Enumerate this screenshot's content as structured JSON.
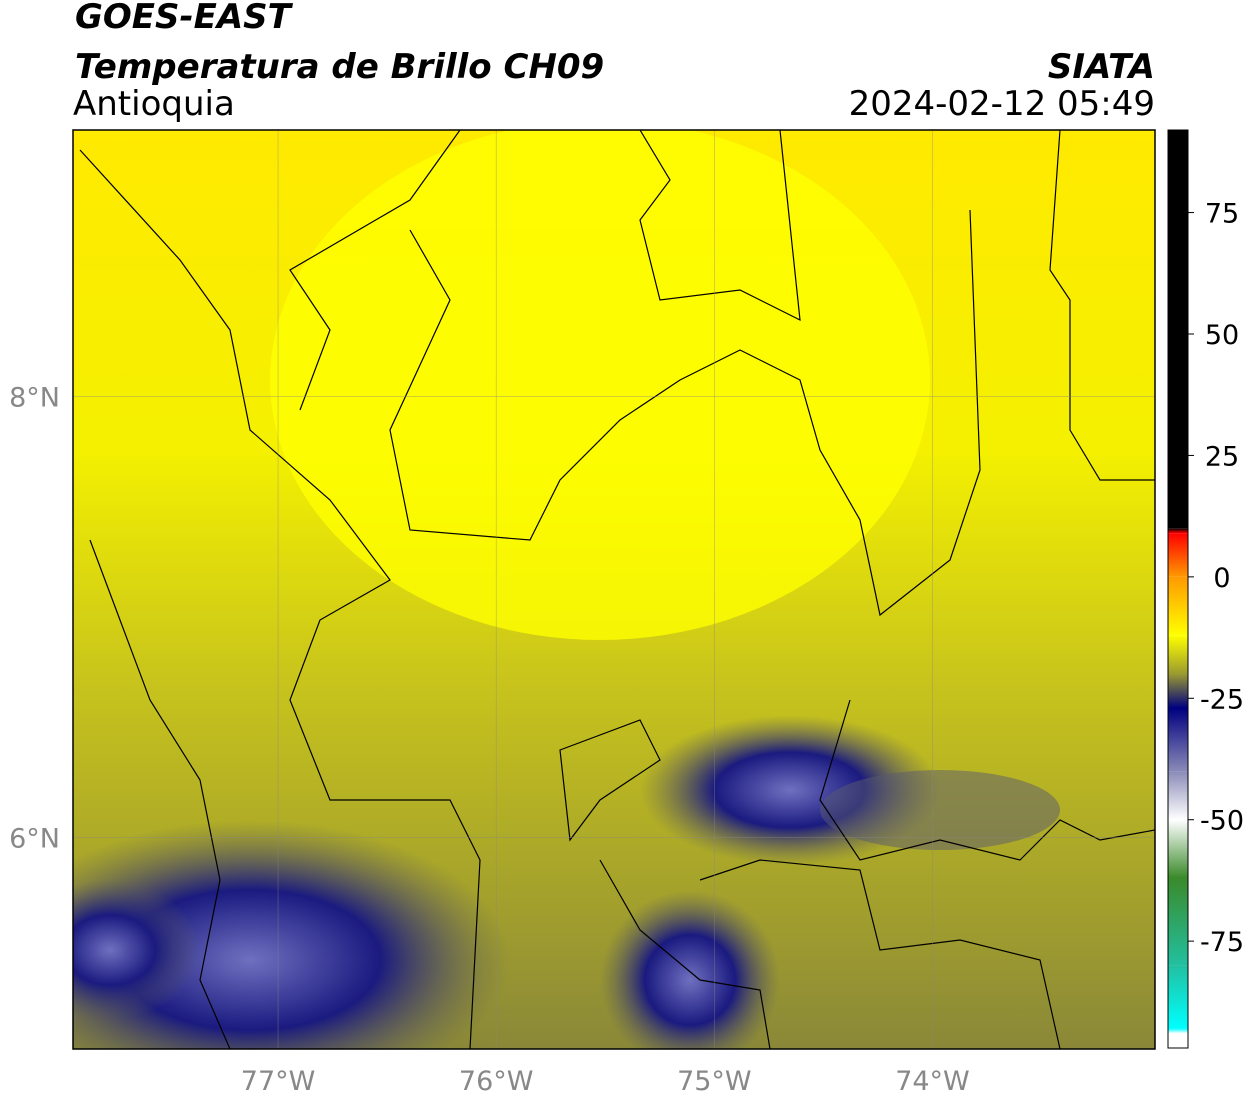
{
  "header": {
    "satellite": "GOES-EAST",
    "product": "Temperatura de Brillo CH09",
    "region": "Antioquia",
    "source": "SIATA",
    "timestamp": "2024-02-12 05:49"
  },
  "map": {
    "lonlim": [
      -77.94,
      -72.98
    ],
    "latlim": [
      5.04,
      9.21
    ],
    "lonticks": [
      {
        "value": -77,
        "label": "77°W"
      },
      {
        "value": -76,
        "label": "76°W"
      },
      {
        "value": -75,
        "label": "75°W"
      },
      {
        "value": -74,
        "label": "74°W"
      }
    ],
    "latticks": [
      {
        "value": 8,
        "label": "8°N"
      },
      {
        "value": 6,
        "label": "6°N"
      }
    ]
  },
  "colorbar": {
    "lim": [
      -97,
      92
    ],
    "ticks": [
      75,
      50,
      25,
      0,
      -25,
      -50,
      -75
    ],
    "stops": [
      {
        "value": 92,
        "color": "#000000"
      },
      {
        "value": 10,
        "color": "#000000"
      },
      {
        "value": 9,
        "color": "#ff0000"
      },
      {
        "value": 0,
        "color": "#ff9900"
      },
      {
        "value": -12,
        "color": "#ffff00"
      },
      {
        "value": -20,
        "color": "#9a9a30"
      },
      {
        "value": -27,
        "color": "#000080"
      },
      {
        "value": -40,
        "color": "#8a8ab8"
      },
      {
        "value": -50,
        "color": "#ffffff"
      },
      {
        "value": -62,
        "color": "#3a8a2a"
      },
      {
        "value": -80,
        "color": "#22c0a0"
      },
      {
        "value": -93,
        "color": "#00ffff"
      },
      {
        "value": -94,
        "color": "#ffffff"
      },
      {
        "value": -97,
        "color": "#ffffff"
      }
    ]
  }
}
